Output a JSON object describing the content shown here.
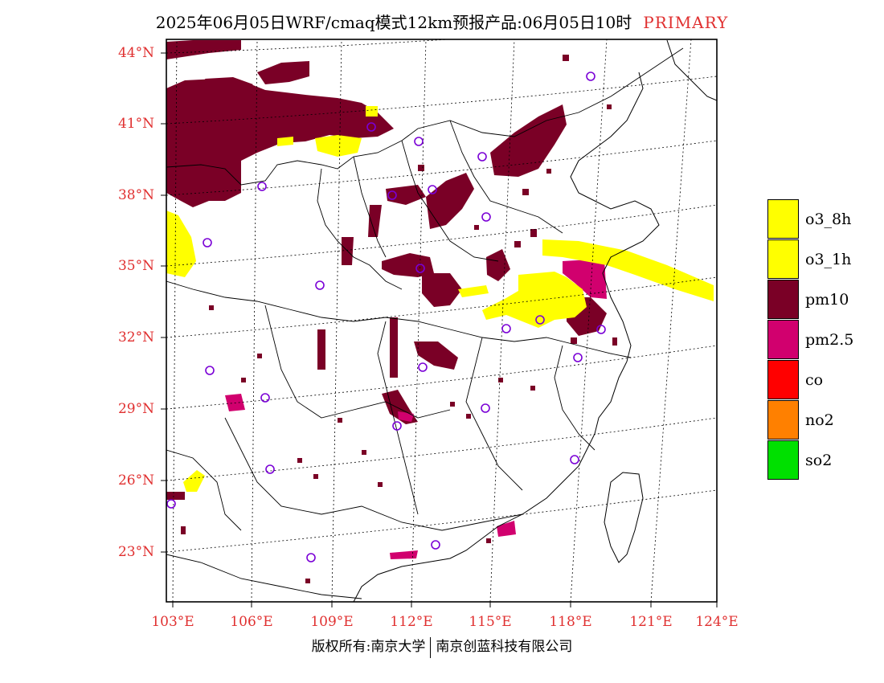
{
  "header": {
    "title": "2025年06月05日WRF/cmaq模式12km预报产品:06月05日10时",
    "tag": "PRIMARY"
  },
  "map": {
    "lat_labels": [
      "44°N",
      "41°N",
      "38°N",
      "35°N",
      "32°N",
      "29°N",
      "26°N",
      "23°N"
    ],
    "lon_labels": [
      "103°E",
      "106°E",
      "109°E",
      "112°E",
      "115°E",
      "118°E",
      "121°E",
      "124°E"
    ]
  },
  "legend": {
    "items": [
      {
        "label": "o3_8h",
        "color": "#ffff00"
      },
      {
        "label": "o3_1h",
        "color": "#ffff00"
      },
      {
        "label": "pm10",
        "color": "#7a0026"
      },
      {
        "label": "pm2.5",
        "color": "#d1006e"
      },
      {
        "label": "co",
        "color": "#ff0000"
      },
      {
        "label": "no2",
        "color": "#ff8000"
      },
      {
        "label": "so2",
        "color": "#00e000"
      }
    ]
  },
  "colors": {
    "o3": "#ffff00",
    "pm10": "#7a0026",
    "pm25": "#d1006e",
    "station": "#7a00d6",
    "axis_label": "#e03030"
  },
  "footer": {
    "left": "版权所有:南京大学",
    "right": "南京创蓝科技有限公司"
  }
}
